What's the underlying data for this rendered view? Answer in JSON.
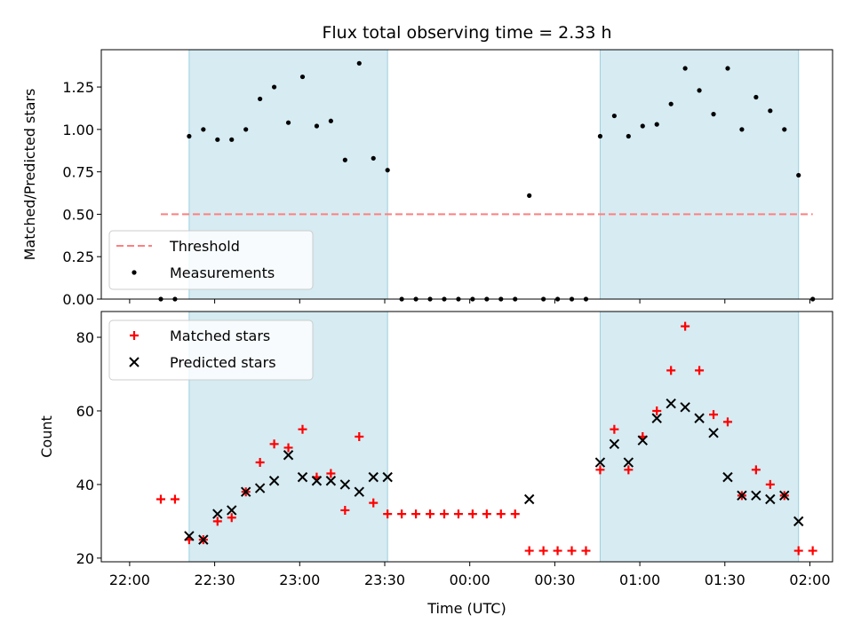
{
  "chart_data": [
    {
      "type": "scatter",
      "title": "Flux total observing time = 2.33 h",
      "xlabel": "",
      "ylabel": "Matched/Predicted stars",
      "xlim": [
        "21:50",
        "02:08"
      ],
      "ylim": [
        0,
        1.47
      ],
      "yticks": [
        "0.00",
        "0.25",
        "0.50",
        "0.75",
        "1.00",
        "1.25"
      ],
      "shaded_intervals": [
        [
          "22:21",
          "23:31"
        ],
        [
          "00:46",
          "01:56"
        ]
      ],
      "threshold": {
        "name": "Threshold",
        "value": 0.5,
        "x_range": [
          "22:11",
          "02:01"
        ],
        "color": "#ff7f7f"
      },
      "series": [
        {
          "name": "Measurements",
          "color": "#000000",
          "points": [
            [
              "22:11",
              0.0
            ],
            [
              "22:16",
              0.0
            ],
            [
              "22:21",
              0.96
            ],
            [
              "22:26",
              1.0
            ],
            [
              "22:31",
              0.94
            ],
            [
              "22:36",
              0.94
            ],
            [
              "22:41",
              1.0
            ],
            [
              "22:46",
              1.18
            ],
            [
              "22:51",
              1.25
            ],
            [
              "22:56",
              1.04
            ],
            [
              "23:01",
              1.31
            ],
            [
              "23:06",
              1.02
            ],
            [
              "23:11",
              1.05
            ],
            [
              "23:16",
              0.82
            ],
            [
              "23:21",
              1.39
            ],
            [
              "23:26",
              0.83
            ],
            [
              "23:31",
              0.76
            ],
            [
              "23:36",
              0.0
            ],
            [
              "23:41",
              0.0
            ],
            [
              "23:46",
              0.0
            ],
            [
              "23:51",
              0.0
            ],
            [
              "23:56",
              0.0
            ],
            [
              "00:01",
              0.0
            ],
            [
              "00:06",
              0.0
            ],
            [
              "00:11",
              0.0
            ],
            [
              "00:16",
              0.0
            ],
            [
              "00:21",
              0.61
            ],
            [
              "00:26",
              0.0
            ],
            [
              "00:31",
              0.0
            ],
            [
              "00:36",
              0.0
            ],
            [
              "00:41",
              0.0
            ],
            [
              "00:46",
              0.96
            ],
            [
              "00:51",
              1.08
            ],
            [
              "00:56",
              0.96
            ],
            [
              "01:01",
              1.02
            ],
            [
              "01:06",
              1.03
            ],
            [
              "01:11",
              1.15
            ],
            [
              "01:16",
              1.36
            ],
            [
              "01:21",
              1.23
            ],
            [
              "01:26",
              1.09
            ],
            [
              "01:31",
              1.36
            ],
            [
              "01:36",
              1.0
            ],
            [
              "01:41",
              1.19
            ],
            [
              "01:46",
              1.11
            ],
            [
              "01:51",
              1.0
            ],
            [
              "01:56",
              0.73
            ],
            [
              "02:01",
              0.0
            ]
          ]
        }
      ],
      "legend": {
        "placement": "lower-left",
        "entries": [
          "Threshold",
          "Measurements"
        ]
      }
    },
    {
      "type": "scatter",
      "title": "",
      "xlabel": "Time (UTC)",
      "ylabel": "Count",
      "xlim": [
        "21:50",
        "02:08"
      ],
      "ylim": [
        19,
        87
      ],
      "yticks": [
        "20",
        "40",
        "60",
        "80"
      ],
      "xticks": [
        "22:00",
        "22:30",
        "23:00",
        "23:30",
        "00:00",
        "00:30",
        "01:00",
        "01:30",
        "02:00"
      ],
      "shaded_intervals": [
        [
          "22:21",
          "23:31"
        ],
        [
          "00:46",
          "01:56"
        ]
      ],
      "series": [
        {
          "name": "Matched stars",
          "marker": "plus",
          "color": "#ff0000",
          "points": [
            [
              "22:11",
              36
            ],
            [
              "22:16",
              36
            ],
            [
              "22:21",
              25
            ],
            [
              "22:26",
              25
            ],
            [
              "22:31",
              30
            ],
            [
              "22:36",
              31
            ],
            [
              "22:41",
              38
            ],
            [
              "22:46",
              46
            ],
            [
              "22:51",
              51
            ],
            [
              "22:56",
              50
            ],
            [
              "23:01",
              55
            ],
            [
              "23:06",
              42
            ],
            [
              "23:11",
              43
            ],
            [
              "23:16",
              33
            ],
            [
              "23:21",
              53
            ],
            [
              "23:26",
              35
            ],
            [
              "23:31",
              32
            ],
            [
              "23:36",
              32
            ],
            [
              "23:41",
              32
            ],
            [
              "23:46",
              32
            ],
            [
              "23:51",
              32
            ],
            [
              "23:56",
              32
            ],
            [
              "00:01",
              32
            ],
            [
              "00:06",
              32
            ],
            [
              "00:11",
              32
            ],
            [
              "00:16",
              32
            ],
            [
              "00:21",
              22
            ],
            [
              "00:26",
              22
            ],
            [
              "00:31",
              22
            ],
            [
              "00:36",
              22
            ],
            [
              "00:41",
              22
            ],
            [
              "00:46",
              44
            ],
            [
              "00:51",
              55
            ],
            [
              "00:56",
              44
            ],
            [
              "01:01",
              53
            ],
            [
              "01:06",
              60
            ],
            [
              "01:11",
              71
            ],
            [
              "01:16",
              83
            ],
            [
              "01:21",
              71
            ],
            [
              "01:26",
              59
            ],
            [
              "01:31",
              57
            ],
            [
              "01:36",
              37
            ],
            [
              "01:41",
              44
            ],
            [
              "01:46",
              40
            ],
            [
              "01:51",
              37
            ],
            [
              "01:56",
              22
            ],
            [
              "02:01",
              22
            ]
          ]
        },
        {
          "name": "Predicted stars",
          "marker": "x",
          "color": "#000000",
          "points": [
            [
              "22:21",
              26
            ],
            [
              "22:26",
              25
            ],
            [
              "22:31",
              32
            ],
            [
              "22:36",
              33
            ],
            [
              "22:41",
              38
            ],
            [
              "22:46",
              39
            ],
            [
              "22:51",
              41
            ],
            [
              "22:56",
              48
            ],
            [
              "23:01",
              42
            ],
            [
              "23:06",
              41
            ],
            [
              "23:11",
              41
            ],
            [
              "23:16",
              40
            ],
            [
              "23:21",
              38
            ],
            [
              "23:26",
              42
            ],
            [
              "23:31",
              42
            ],
            [
              "00:21",
              36
            ],
            [
              "00:46",
              46
            ],
            [
              "00:51",
              51
            ],
            [
              "00:56",
              46
            ],
            [
              "01:01",
              52
            ],
            [
              "01:06",
              58
            ],
            [
              "01:11",
              62
            ],
            [
              "01:16",
              61
            ],
            [
              "01:21",
              58
            ],
            [
              "01:26",
              54
            ],
            [
              "01:31",
              42
            ],
            [
              "01:36",
              37
            ],
            [
              "01:41",
              37
            ],
            [
              "01:46",
              36
            ],
            [
              "01:51",
              37
            ],
            [
              "01:56",
              30
            ]
          ]
        }
      ],
      "legend": {
        "placement": "upper-left",
        "entries": [
          "Matched stars",
          "Predicted stars"
        ]
      }
    }
  ]
}
